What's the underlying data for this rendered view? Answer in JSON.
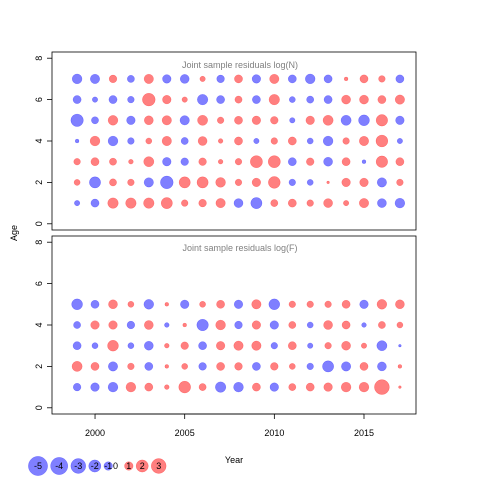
{
  "chart_data": [
    {
      "type": "scatter",
      "title": "Joint sample residuals log(N)",
      "ylabel": "Age",
      "xlim": [
        1997.6,
        2017.9
      ],
      "ylim": [
        -0.3,
        8.3
      ],
      "yticks": [
        0,
        2,
        4,
        6,
        8
      ],
      "ages": [
        1,
        2,
        3,
        4,
        5,
        6,
        7
      ],
      "years": [
        1999,
        2000,
        2001,
        2002,
        2003,
        2004,
        2005,
        2006,
        2007,
        2008,
        2009,
        2010,
        2011,
        2012,
        2013,
        2014,
        2015,
        2016,
        2017
      ],
      "residuals": [
        [
          -0.4,
          -0.9,
          1.5,
          1.5,
          1.5,
          1.7,
          0.6,
          0.8,
          1.2,
          -1.1,
          -1.7,
          0.7,
          0.9,
          0.6,
          1.1,
          0.4,
          1.2,
          -1.1,
          -1.3
        ],
        [
          0.5,
          -1.7,
          0.7,
          0.6,
          -1.2,
          -2.2,
          1.7,
          1.7,
          1.3,
          0.6,
          1.0,
          1.9,
          -0.6,
          -0.5,
          0.1,
          1.0,
          1.0,
          -1.2,
          0.6
        ],
        [
          0.6,
          0.9,
          0.7,
          0.3,
          1.4,
          -1.0,
          -0.8,
          0.8,
          0.3,
          0.6,
          2.0,
          2.0,
          -0.9,
          0.8,
          -1.1,
          0.9,
          -0.2,
          1.8,
          0.9
        ],
        [
          -0.2,
          1.3,
          -1.3,
          -0.6,
          0.5,
          1.2,
          -0.7,
          1.1,
          0.3,
          0.9,
          -0.4,
          0.6,
          0.9,
          -0.5,
          -1.3,
          0.6,
          1.2,
          1.9,
          -0.4
        ],
        [
          -2.1,
          -0.7,
          1.3,
          -1.0,
          1.1,
          1.2,
          -1.2,
          1.4,
          0.6,
          0.9,
          1.0,
          0.8,
          -0.4,
          1.0,
          1.4,
          -1.4,
          -1.6,
          1.8,
          -1.0
        ],
        [
          -0.9,
          -0.4,
          -0.9,
          -0.6,
          2.2,
          1.0,
          0.4,
          -1.5,
          -0.9,
          0.7,
          -0.9,
          1.5,
          -0.5,
          -0.7,
          -0.9,
          1.1,
          1.1,
          0.9,
          1.2
        ],
        [
          -1.3,
          -1.2,
          0.8,
          -0.7,
          1.2,
          -1.0,
          -1.1,
          0.4,
          -0.8,
          0.9,
          -1.0,
          1.2,
          -0.9,
          -1.3,
          -0.9,
          0.2,
          0.9,
          0.6,
          -0.9
        ]
      ]
    },
    {
      "type": "scatter",
      "title": "Joint sample residuals log(F)",
      "ylabel": "",
      "xlim": [
        1997.6,
        2017.9
      ],
      "ylim": [
        -0.3,
        8.3
      ],
      "yticks": [
        0,
        2,
        4,
        6,
        8
      ],
      "ages": [
        1,
        2,
        3,
        4,
        5
      ],
      "years": [
        1999,
        2000,
        2001,
        2002,
        2003,
        2004,
        2005,
        2006,
        2007,
        2008,
        2009,
        2010,
        2011,
        2012,
        2013,
        2014,
        2015,
        2016,
        2017
      ],
      "residuals": [
        [
          -0.8,
          -1.0,
          -1.3,
          1.3,
          0.9,
          0.3,
          1.9,
          0.7,
          -1.5,
          -1.3,
          0.9,
          -1.0,
          0.7,
          0.9,
          1.0,
          1.3,
          1.3,
          3.0,
          0.1
        ],
        [
          1.4,
          0.9,
          -1.2,
          0.6,
          -0.9,
          0.2,
          0.5,
          -0.8,
          0.9,
          0.8,
          -0.9,
          0.8,
          0.5,
          -0.6,
          -1.7,
          -1.2,
          0.9,
          -1.1,
          0.2
        ],
        [
          -0.9,
          -0.5,
          1.6,
          -0.5,
          -1.1,
          0.3,
          0.8,
          -0.9,
          1.0,
          1.2,
          1.2,
          -0.6,
          0.9,
          -0.4,
          0.6,
          1.1,
          0.4,
          -1.4,
          -0.1
        ],
        [
          -0.7,
          1.0,
          1.0,
          -0.8,
          1.1,
          -0.3,
          0.2,
          -1.8,
          1.3,
          -0.8,
          1.0,
          -1.0,
          0.7,
          -0.5,
          1.1,
          0.9,
          -0.3,
          0.7,
          0.5
        ],
        [
          -1.6,
          -0.9,
          1.1,
          0.5,
          -1.3,
          0.2,
          -1.0,
          0.5,
          0.9,
          -1.0,
          1.2,
          -1.6,
          0.6,
          0.6,
          0.6,
          0.9,
          -1.0,
          1.3,
          1.1
        ]
      ]
    }
  ],
  "xlabel": "Year",
  "xticks": [
    2000,
    2005,
    2010,
    2015
  ],
  "legend": {
    "values": [
      -5,
      -4,
      -3,
      -2,
      -1,
      0,
      1,
      2,
      3
    ],
    "labels": [
      "-5",
      "-4",
      "-3",
      "-2",
      "-1",
      "0",
      "1",
      "2",
      "3"
    ]
  },
  "colors": {
    "positive": "#ff0000",
    "negative": "#0000ff",
    "fill_opacity": 0.5,
    "title": "#808080"
  }
}
